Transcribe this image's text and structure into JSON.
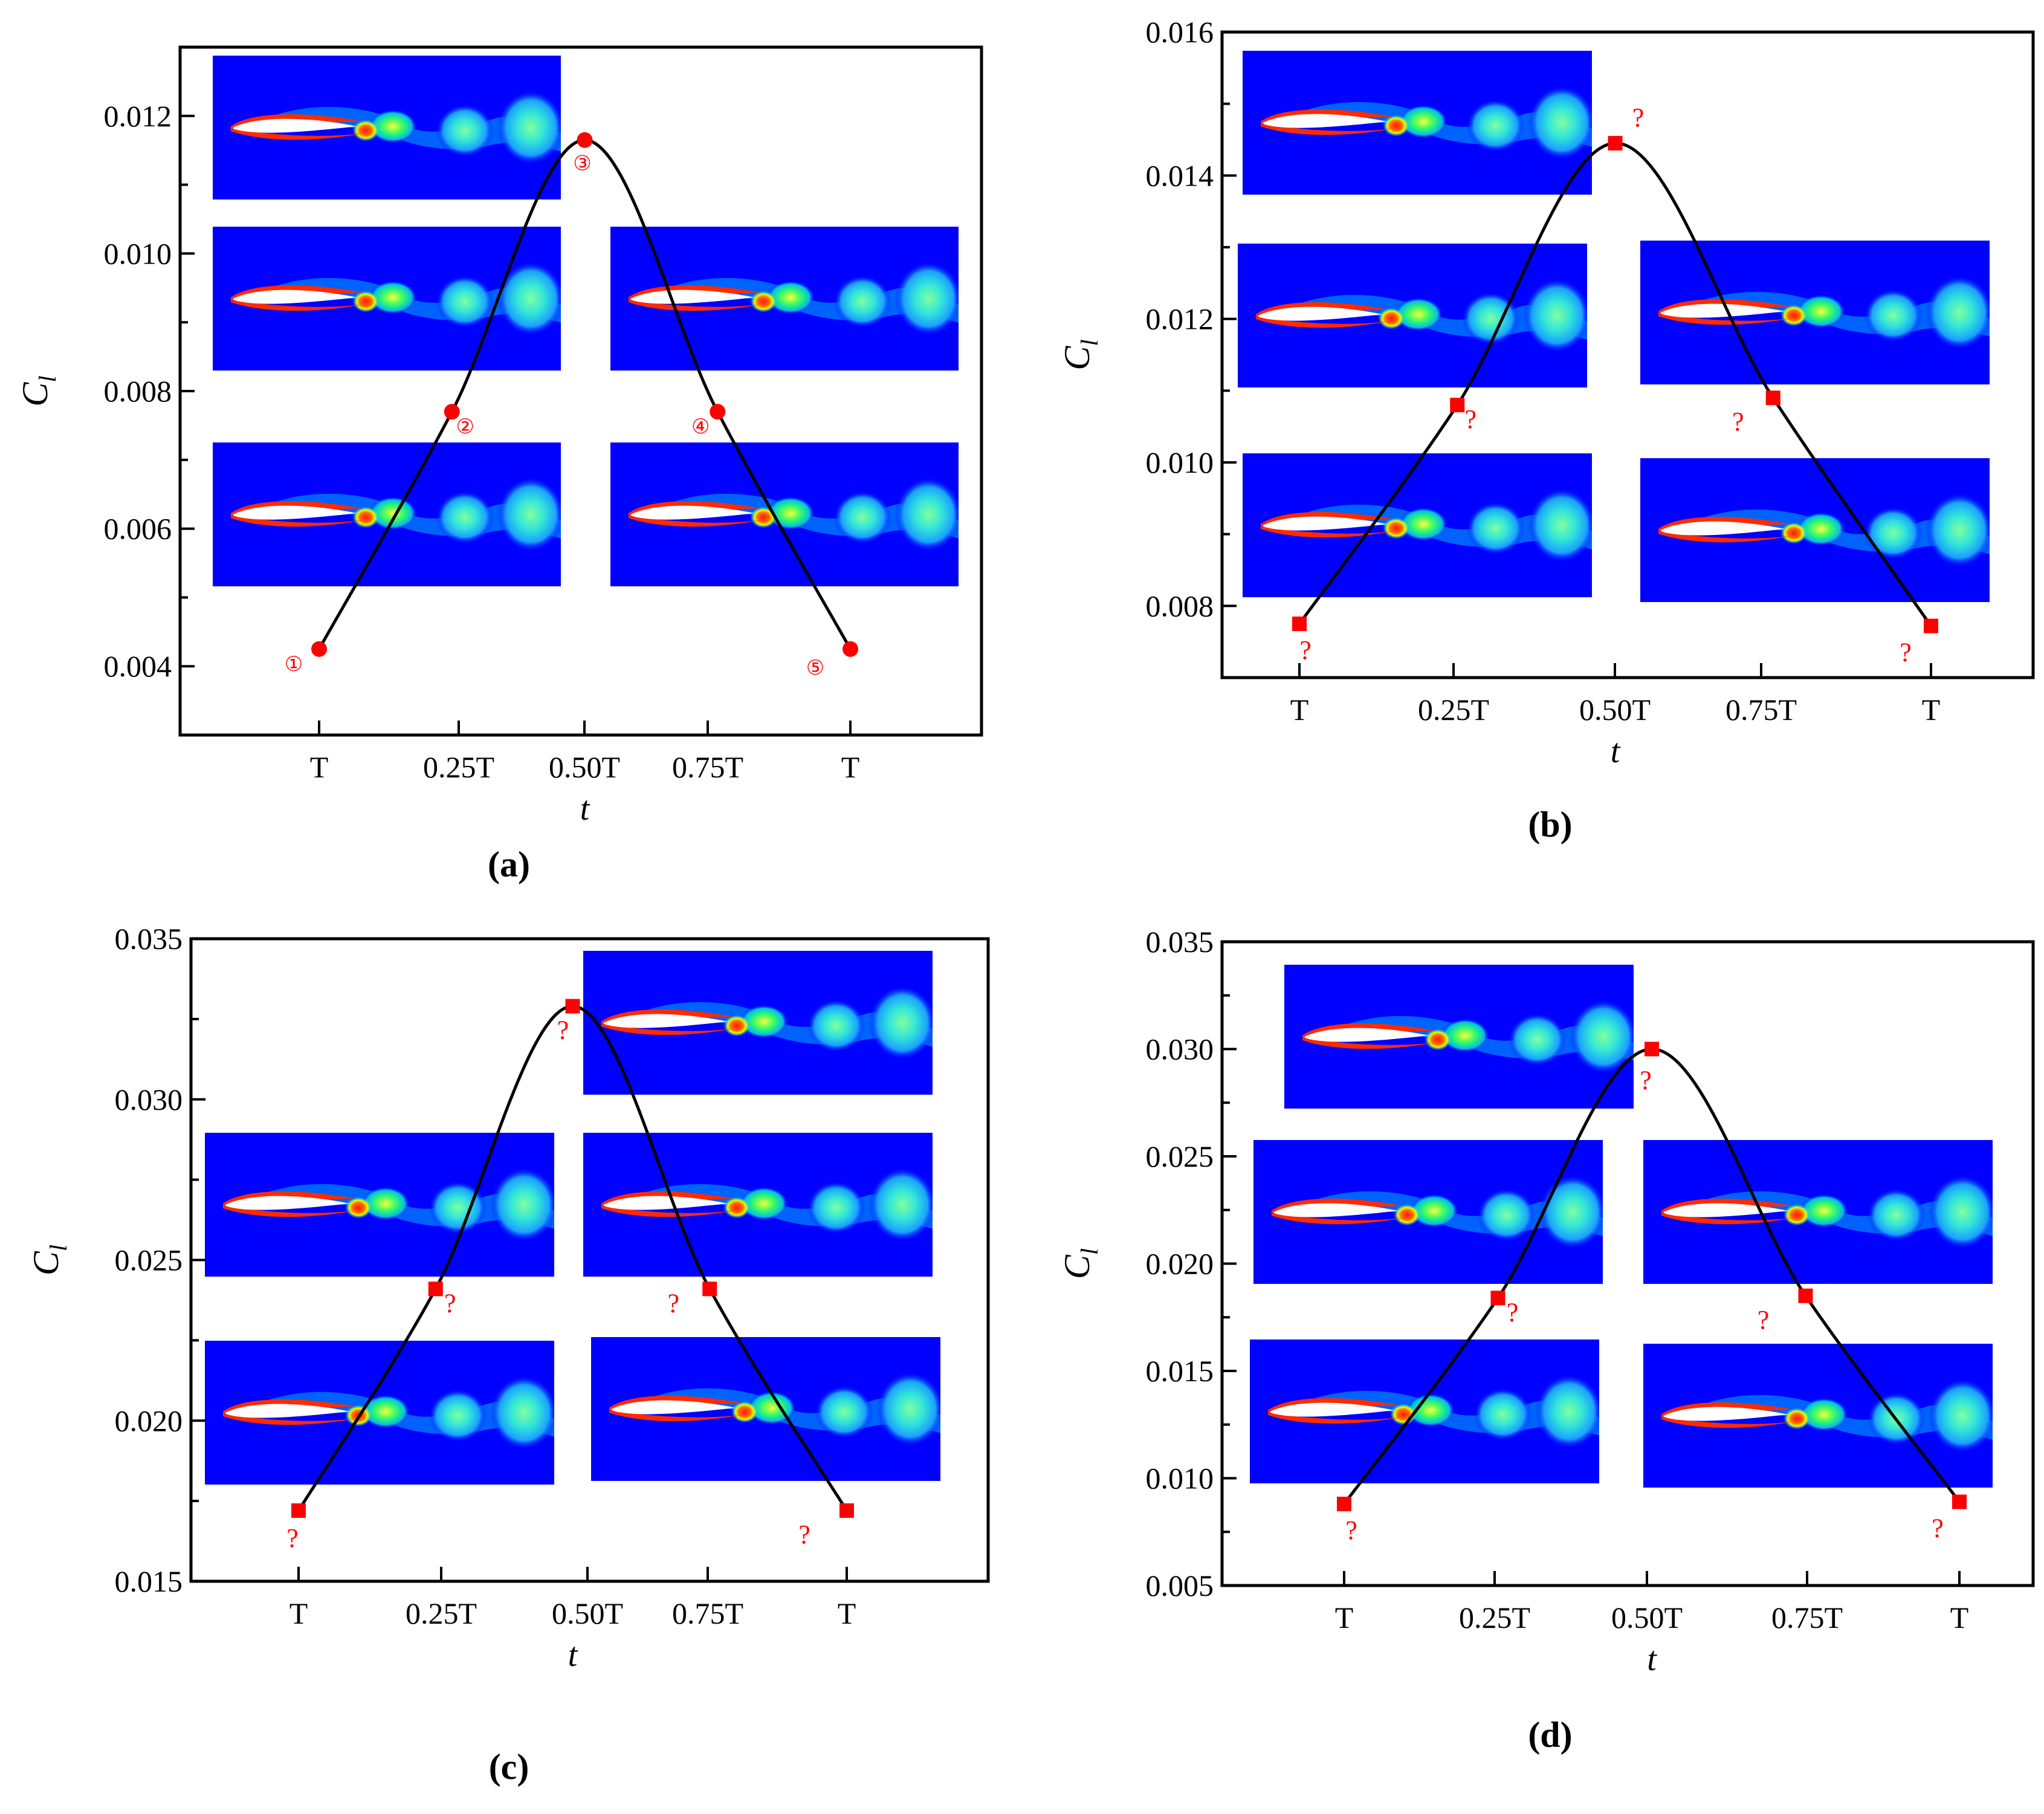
{
  "figure": {
    "panels": [
      {
        "label": "(a)",
        "ylabel": "C",
        "ylabel_sub": "l",
        "xlabel": "t",
        "ylim": [
          0.003,
          0.013
        ],
        "yticks": [
          "0.004",
          "0.006",
          "0.008",
          "0.010",
          "0.012"
        ],
        "xticks": [
          "T",
          "0.25T",
          "0.50T",
          "0.75T",
          "T"
        ],
        "point_labels": [
          "①",
          "②",
          "③",
          "④",
          "⑤"
        ]
      },
      {
        "label": "(b)",
        "ylabel": "C",
        "ylabel_sub": "l",
        "xlabel": "t",
        "ylim": [
          0.007,
          0.016
        ],
        "yticks": [
          "0.008",
          "0.010",
          "0.012",
          "0.014",
          "0.016"
        ],
        "xticks": [
          "T",
          "0.25T",
          "0.50T",
          "0.75T",
          "T"
        ],
        "point_labels": [
          "?",
          "?",
          "?",
          "?",
          "?"
        ]
      },
      {
        "label": "(c)",
        "ylabel": "C",
        "ylabel_sub": "l",
        "xlabel": "t",
        "ylim": [
          0.015,
          0.035
        ],
        "yticks": [
          "0.015",
          "0.020",
          "0.025",
          "0.030",
          "0.035"
        ],
        "xticks": [
          "T",
          "0.25T",
          "0.50T",
          "0.75T",
          "T"
        ],
        "point_labels": [
          "?",
          "?",
          "?",
          "?",
          "?"
        ]
      },
      {
        "label": "(d)",
        "ylabel": "C",
        "ylabel_sub": "l",
        "xlabel": "t",
        "ylim": [
          0.005,
          0.035
        ],
        "yticks": [
          "0.005",
          "0.010",
          "0.015",
          "0.020",
          "0.025",
          "0.030",
          "0.035"
        ],
        "xticks": [
          "T",
          "0.25T",
          "0.50T",
          "0.75T",
          "T"
        ],
        "point_labels": [
          "?",
          "?",
          "?",
          "?",
          "?"
        ]
      }
    ]
  },
  "colors": {
    "curve": "#000000",
    "marker": "#ff0000",
    "field_bg": "#0000ff",
    "axis": "#000000"
  },
  "chart_data": [
    {
      "type": "line",
      "title": "",
      "xlabel": "t",
      "ylabel": "Cl",
      "categories": [
        "T",
        "0.25T",
        "0.50T",
        "0.75T",
        "T"
      ],
      "xlim": [
        -0.25,
        1.25
      ],
      "ylim": [
        0.003,
        0.013
      ],
      "series": [
        {
          "x": [
            0.0,
            0.25,
            0.5,
            0.75,
            1.0
          ],
          "values": [
            0.00425,
            0.0077,
            0.01165,
            0.0077,
            0.00425
          ]
        }
      ],
      "grid": false,
      "legend": "none"
    },
    {
      "type": "line",
      "title": "",
      "xlabel": "t",
      "ylabel": "Cl",
      "categories": [
        "T",
        "0.25T",
        "0.50T",
        "0.75T",
        "T"
      ],
      "xlim": [
        -0.25,
        1.25
      ],
      "ylim": [
        0.007,
        0.016
      ],
      "series": [
        {
          "x": [
            0.0,
            0.25,
            0.5,
            0.75,
            1.0
          ],
          "values": [
            0.00775,
            0.0108,
            0.01445,
            0.0109,
            0.00772
          ]
        }
      ],
      "grid": false,
      "legend": "none"
    },
    {
      "type": "line",
      "title": "",
      "xlabel": "t",
      "ylabel": "Cl",
      "categories": [
        "T",
        "0.25T",
        "0.50T",
        "0.75T",
        "T"
      ],
      "xlim": [
        -0.25,
        1.25
      ],
      "ylim": [
        0.015,
        0.035
      ],
      "series": [
        {
          "x": [
            0.0,
            0.25,
            0.5,
            0.75,
            1.0
          ],
          "values": [
            0.0172,
            0.0241,
            0.0329,
            0.0241,
            0.0172
          ]
        }
      ],
      "grid": false,
      "legend": "none"
    },
    {
      "type": "line",
      "title": "",
      "xlabel": "t",
      "ylabel": "Cl",
      "categories": [
        "T",
        "0.25T",
        "0.50T",
        "0.75T",
        "T"
      ],
      "xlim": [
        -0.25,
        1.25
      ],
      "ylim": [
        0.005,
        0.035
      ],
      "series": [
        {
          "x": [
            0.0,
            0.25,
            0.5,
            0.75,
            1.0
          ],
          "values": [
            0.0088,
            0.0184,
            0.03,
            0.0185,
            0.0089
          ]
        }
      ],
      "grid": false,
      "legend": "none"
    }
  ]
}
